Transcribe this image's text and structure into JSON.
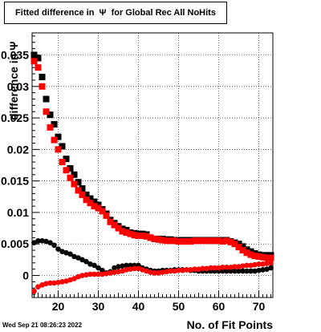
{
  "title": "Fitted difference in  Ψ  for Global Rec All NoHits",
  "timestamp": "Wed Sep 21 08:26:23 2022",
  "chart_data": {
    "type": "scatter",
    "title": "Fitted difference in  Ψ  for Global Rec All NoHits",
    "xlabel": "No. of Fit Points",
    "ylabel": "difference in  Ψ",
    "xlim": [
      13.5,
      73.5
    ],
    "ylim": [
      -0.0035,
      0.0385
    ],
    "xticks": [
      20,
      30,
      40,
      50,
      60,
      70
    ],
    "yticks": [
      0,
      0.005,
      0.01,
      0.015,
      0.02,
      0.025,
      0.03,
      0.035
    ],
    "ytick_labels": [
      "0",
      "0.005",
      "0.01",
      "0.015",
      "0.02",
      "0.025",
      "0.03",
      "0.035"
    ],
    "grid": true,
    "series": [
      {
        "color": "#000000",
        "marker": "square",
        "x": [
          14,
          15,
          16,
          17,
          18,
          19,
          20,
          21,
          22,
          23,
          24,
          25,
          26,
          27,
          28,
          29,
          30,
          31,
          32,
          33,
          34,
          35,
          36,
          37,
          38,
          39,
          40,
          41,
          42,
          43,
          44,
          45,
          46,
          47,
          48,
          49,
          50,
          51,
          52,
          53,
          54,
          55,
          56,
          57,
          58,
          59,
          60,
          61,
          62,
          63,
          64,
          65,
          66,
          67,
          68,
          69,
          70,
          71,
          72,
          73
        ],
        "y": [
          0.035,
          0.0345,
          0.0315,
          0.028,
          0.0255,
          0.024,
          0.022,
          0.0205,
          0.0185,
          0.017,
          0.016,
          0.0148,
          0.0138,
          0.0128,
          0.0122,
          0.0117,
          0.0112,
          0.0105,
          0.0098,
          0.0088,
          0.0083,
          0.0078,
          0.0074,
          0.0072,
          0.0068,
          0.0067,
          0.0066,
          0.0066,
          0.0065,
          0.006,
          0.0058,
          0.0058,
          0.0058,
          0.0057,
          0.0057,
          0.0056,
          0.0056,
          0.0056,
          0.0056,
          0.0056,
          0.0056,
          0.0056,
          0.0056,
          0.0056,
          0.0056,
          0.0056,
          0.0056,
          0.0056,
          0.0056,
          0.0054,
          0.0052,
          0.005,
          0.0046,
          0.0041,
          0.0038,
          0.0035,
          0.0033,
          0.0032,
          0.0032,
          0.0032
        ]
      },
      {
        "color": "#ff0000",
        "marker": "square",
        "x": [
          14,
          15,
          16,
          17,
          18,
          19,
          20,
          21,
          22,
          23,
          24,
          25,
          26,
          27,
          28,
          29,
          30,
          31,
          32,
          33,
          34,
          35,
          36,
          37,
          38,
          39,
          40,
          41,
          42,
          43,
          44,
          45,
          46,
          47,
          48,
          49,
          50,
          51,
          52,
          53,
          54,
          55,
          56,
          57,
          58,
          59,
          60,
          61,
          62,
          63,
          64,
          65,
          66,
          67,
          68,
          69,
          70,
          71,
          72,
          73
        ],
        "y": [
          0.034,
          0.033,
          0.03,
          0.026,
          0.0235,
          0.0215,
          0.02,
          0.018,
          0.0167,
          0.0155,
          0.0145,
          0.0135,
          0.0128,
          0.012,
          0.0115,
          0.011,
          0.0107,
          0.0102,
          0.0095,
          0.0085,
          0.008,
          0.0075,
          0.007,
          0.0068,
          0.0066,
          0.0064,
          0.0063,
          0.0063,
          0.0062,
          0.006,
          0.0058,
          0.0057,
          0.0056,
          0.0055,
          0.0055,
          0.0055,
          0.0054,
          0.0054,
          0.0054,
          0.0054,
          0.0055,
          0.0055,
          0.0055,
          0.0055,
          0.0055,
          0.0055,
          0.0055,
          0.0054,
          0.0055,
          0.0053,
          0.005,
          0.0045,
          0.004,
          0.0036,
          0.0033,
          0.0031,
          0.003,
          0.0029,
          0.0028,
          0.0028
        ]
      },
      {
        "color": "#000000",
        "marker": "circle",
        "x": [
          14,
          15,
          16,
          17,
          18,
          19,
          20,
          21,
          22,
          23,
          24,
          25,
          26,
          27,
          28,
          29,
          30,
          31,
          32,
          33,
          34,
          35,
          36,
          37,
          38,
          39,
          40,
          41,
          42,
          43,
          44,
          45,
          46,
          47,
          48,
          49,
          50,
          51,
          52,
          53,
          54,
          55,
          56,
          57,
          58,
          59,
          60,
          61,
          62,
          63,
          64,
          65,
          66,
          67,
          68,
          69,
          70,
          71,
          72,
          73
        ],
        "y": [
          0.0052,
          0.0055,
          0.0055,
          0.0054,
          0.0052,
          0.0048,
          0.0042,
          0.0038,
          0.0036,
          0.0034,
          0.003,
          0.0028,
          0.0025,
          0.0022,
          0.0018,
          0.0016,
          0.0012,
          0.0008,
          0.0004,
          0.0006,
          0.0012,
          0.0014,
          0.0015,
          0.0016,
          0.0016,
          0.0016,
          0.0016,
          0.0012,
          0.001,
          0.0008,
          0.0007,
          0.0007,
          0.0008,
          0.0008,
          0.0008,
          0.0009,
          0.0009,
          0.0009,
          0.0009,
          0.0008,
          0.0008,
          0.0007,
          0.0007,
          0.0007,
          0.0007,
          0.0007,
          0.0007,
          0.0007,
          0.0007,
          0.0007,
          0.0007,
          0.0007,
          0.0007,
          0.0007,
          0.0007,
          0.0007,
          0.0008,
          0.0009,
          0.001,
          0.0012
        ]
      },
      {
        "color": "#ff0000",
        "marker": "circle",
        "x": [
          14,
          15,
          16,
          17,
          18,
          19,
          20,
          21,
          22,
          23,
          24,
          25,
          26,
          27,
          28,
          29,
          30,
          31,
          32,
          33,
          34,
          35,
          36,
          37,
          38,
          39,
          40,
          41,
          42,
          43,
          44,
          45,
          46,
          47,
          48,
          49,
          50,
          51,
          52,
          53,
          54,
          55,
          56,
          57,
          58,
          59,
          60,
          61,
          62,
          63,
          64,
          65,
          66,
          67,
          68,
          69,
          70,
          71,
          72,
          73
        ],
        "y": [
          -0.0025,
          -0.0018,
          -0.0015,
          -0.0013,
          -0.0012,
          -0.0012,
          -0.0011,
          -0.001,
          -0.0009,
          -0.0007,
          -0.0005,
          -0.0002,
          0,
          0.0001,
          0.0002,
          0.0002,
          0.0002,
          0.0002,
          0.0003,
          0.0004,
          0.0005,
          0.0006,
          0.0007,
          0.0009,
          0.001,
          0.0011,
          0.0011,
          0.0009,
          0.0007,
          0.0005,
          0.0004,
          0.0004,
          0.0005,
          0.0006,
          0.0007,
          0.0007,
          0.0008,
          0.0008,
          0.0009,
          0.0009,
          0.001,
          0.001,
          0.0011,
          0.0011,
          0.0012,
          0.0012,
          0.0012,
          0.0013,
          0.0013,
          0.0013,
          0.0014,
          0.0014,
          0.0015,
          0.0016,
          0.0016,
          0.0017,
          0.0018,
          0.0018,
          0.0019,
          0.002
        ]
      }
    ]
  }
}
